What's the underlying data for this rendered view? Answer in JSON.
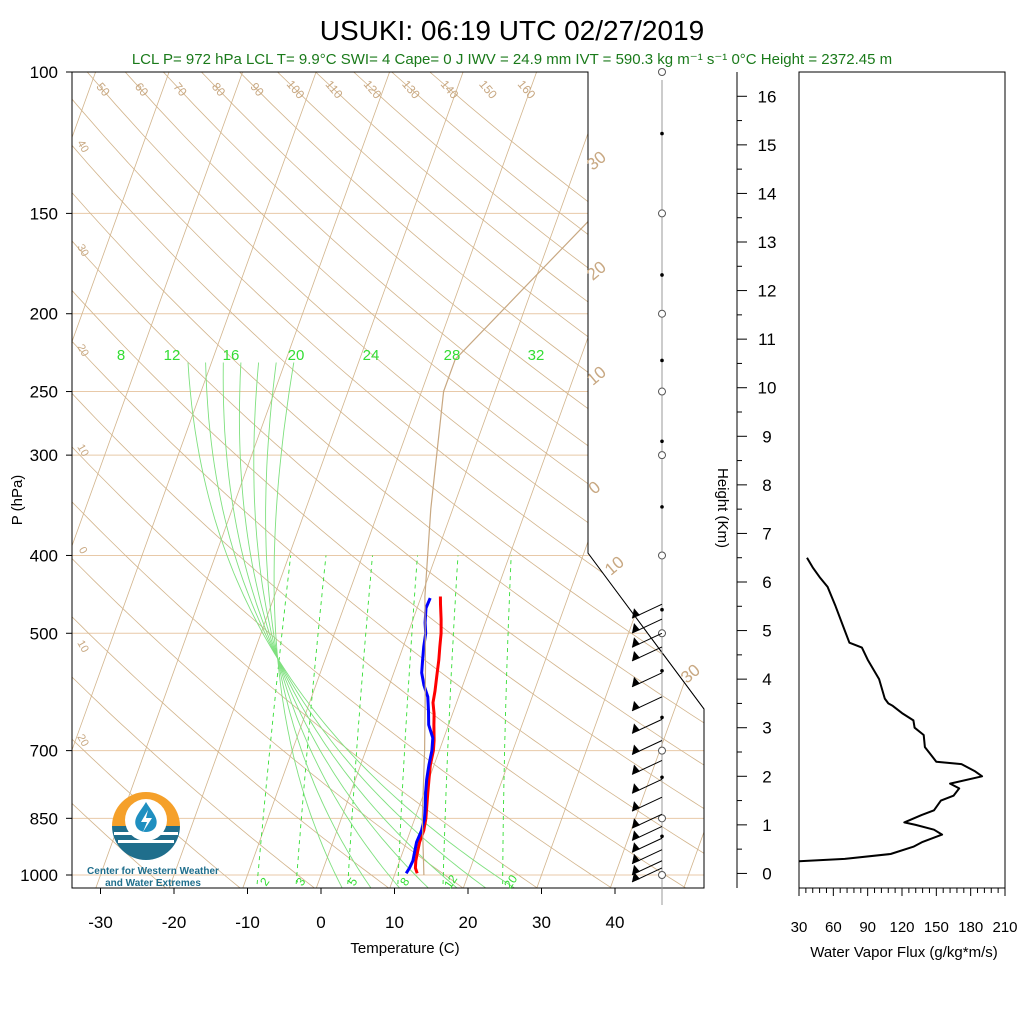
{
  "title": "USUKI: 06:19 UTC 02/27/2019",
  "subtitle": "LCL P= 972 hPa  LCL T= 9.9°C  SWI= 4  Cape= 0 J  IWV = 24.9 mm  IVT = 590.3 kg m⁻¹ s⁻¹  0°C Height = 2372.45 m",
  "logo": {
    "line1": "Center for Western Weather",
    "line2": "and Water Extremes"
  },
  "colors": {
    "temperature": "#ff0000",
    "dewpoint": "#0000ff",
    "mixing": "#33dd33",
    "adiabat": "#d2b48c",
    "parcel": "#c8a882",
    "flux": "#000000",
    "subtitle": "#1a7a1a",
    "logo_orange": "#f5a02a",
    "logo_blue": "#1f6e8c"
  },
  "chart_data": [
    {
      "type": "line",
      "name": "skew-t",
      "xlabel": "Temperature (C)",
      "ylabel": "P (hPa)",
      "x_ticks": [
        -30,
        -20,
        -10,
        0,
        10,
        20,
        30,
        40
      ],
      "y_ticks": [
        100,
        150,
        200,
        250,
        300,
        400,
        500,
        700,
        850,
        1000
      ],
      "xlim": [
        -34,
        50
      ],
      "ylim": [
        1050,
        100
      ],
      "y_scale": "log",
      "grid": true,
      "mixing_ratio_labels": [
        "8",
        "12",
        "16",
        "20",
        "24",
        "28",
        "32"
      ],
      "lower_mixing_labels": [
        "2",
        "3",
        "5",
        "8",
        "12",
        "20"
      ],
      "dry_adiabat_labels": [
        "50",
        "60",
        "70",
        "80",
        "90",
        "100",
        "110",
        "120",
        "130",
        "140",
        "150",
        "160"
      ],
      "moist_adiabat_labels": [
        "40",
        "30",
        "20",
        "10",
        "0",
        "10",
        "20"
      ],
      "isotherm_labels": [
        "30",
        "20",
        "10",
        "0",
        "10",
        "30"
      ],
      "series": [
        {
          "name": "Temperature",
          "points": [
            [
              13.0,
              995
            ],
            [
              12.5,
              980
            ],
            [
              12.2,
              960
            ],
            [
              12.0,
              935
            ],
            [
              11.8,
              910
            ],
            [
              11.8,
              880
            ],
            [
              11.5,
              850
            ],
            [
              11.0,
              820
            ],
            [
              10.5,
              790
            ],
            [
              10.0,
              760
            ],
            [
              9.5,
              730
            ],
            [
              9.2,
              700
            ],
            [
              8.8,
              680
            ],
            [
              8.0,
              650
            ],
            [
              7.5,
              630
            ],
            [
              6.8,
              610
            ],
            [
              6.5,
              590
            ],
            [
              6.0,
              565
            ],
            [
              5.5,
              540
            ],
            [
              5.0,
              520
            ],
            [
              4.5,
              500
            ],
            [
              3.8,
              480
            ],
            [
              3.0,
              460
            ],
            [
              2.6,
              450
            ]
          ]
        },
        {
          "name": "Dewpoint",
          "points": [
            [
              11.5,
              995
            ],
            [
              11.7,
              980
            ],
            [
              11.8,
              960
            ],
            [
              11.6,
              935
            ],
            [
              11.4,
              910
            ],
            [
              11.5,
              880
            ],
            [
              11.3,
              850
            ],
            [
              10.8,
              820
            ],
            [
              10.2,
              790
            ],
            [
              9.7,
              760
            ],
            [
              9.3,
              730
            ],
            [
              9.0,
              700
            ],
            [
              8.5,
              675
            ],
            [
              7.3,
              650
            ],
            [
              6.6,
              625
            ],
            [
              5.8,
              600
            ],
            [
              4.7,
              580
            ],
            [
              3.8,
              560
            ],
            [
              3.3,
              540
            ],
            [
              2.8,
              520
            ],
            [
              2.4,
              500
            ],
            [
              1.8,
              485
            ],
            [
              1.2,
              465
            ],
            [
              1.3,
              452
            ]
          ]
        },
        {
          "name": "Parcel",
          "points": [
            [
              14.0,
              1000
            ],
            [
              11.0,
              850
            ],
            [
              8.0,
              700
            ],
            [
              4.0,
              550
            ],
            [
              0.5,
              450
            ],
            [
              -3.0,
              350
            ],
            [
              -7.0,
              250
            ],
            [
              -7.0,
              228
            ],
            [
              5.0,
              150
            ],
            [
              17.0,
              100
            ]
          ]
        }
      ],
      "wind_barb_pressures": [
        980,
        960,
        930,
        900,
        870,
        840,
        800,
        760,
        720,
        680,
        640,
        600,
        560,
        520,
        500,
        480,
        460
      ]
    },
    {
      "type": "line",
      "name": "water-vapor-flux-profile",
      "xlabel": "Water Vapor Flux (g/kg*m/s)",
      "ylabel": "Height (Km)",
      "x_ticks": [
        30,
        60,
        90,
        120,
        150,
        180,
        210
      ],
      "y_ticks": [
        0,
        1,
        2,
        3,
        4,
        5,
        6,
        7,
        8,
        9,
        10,
        11,
        12,
        13,
        14,
        15,
        16
      ],
      "xlim": [
        30,
        210
      ],
      "ylim": [
        -0.3,
        16.5
      ],
      "points": [
        [
          30,
          0.25
        ],
        [
          70,
          0.3
        ],
        [
          110,
          0.4
        ],
        [
          130,
          0.55
        ],
        [
          138,
          0.65
        ],
        [
          155,
          0.8
        ],
        [
          148,
          0.9
        ],
        [
          132,
          1.0
        ],
        [
          122,
          1.05
        ],
        [
          137,
          1.2
        ],
        [
          148,
          1.3
        ],
        [
          154,
          1.5
        ],
        [
          165,
          1.6
        ],
        [
          170,
          1.75
        ],
        [
          162,
          1.85
        ],
        [
          190,
          2.0
        ],
        [
          184,
          2.1
        ],
        [
          172,
          2.25
        ],
        [
          150,
          2.3
        ],
        [
          145,
          2.45
        ],
        [
          140,
          2.6
        ],
        [
          139,
          2.85
        ],
        [
          131,
          3.0
        ],
        [
          130,
          3.15
        ],
        [
          120,
          3.3
        ],
        [
          112,
          3.45
        ],
        [
          108,
          3.5
        ],
        [
          105,
          3.6
        ],
        [
          100,
          4.0
        ],
        [
          90,
          4.4
        ],
        [
          85,
          4.65
        ],
        [
          74,
          4.75
        ],
        [
          70,
          5.0
        ],
        [
          62,
          5.5
        ],
        [
          55,
          5.9
        ],
        [
          48,
          6.1
        ],
        [
          42,
          6.3
        ],
        [
          37,
          6.5
        ]
      ]
    }
  ]
}
